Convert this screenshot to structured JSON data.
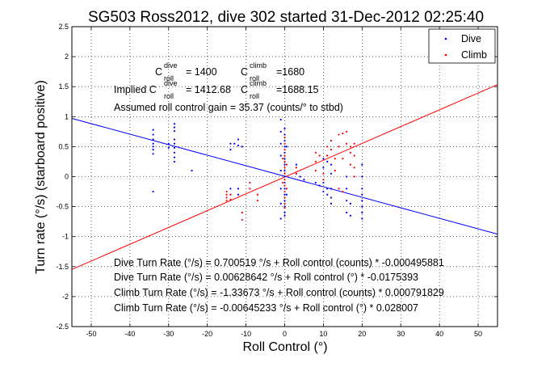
{
  "chart_data": {
    "type": "scatter",
    "title": "SG503 Ross2012, dive 302 started 31-Dec-2012 02:25:40",
    "xlabel": "Roll Control (°)",
    "ylabel": "Turn rate (°/s) (starboard positive)",
    "xlim": [
      -55,
      55
    ],
    "ylim": [
      -2.5,
      2.5
    ],
    "xticks": [
      -50,
      -40,
      -30,
      -20,
      -10,
      0,
      10,
      20,
      30,
      40,
      50
    ],
    "yticks": [
      -2.5,
      -2,
      -1.5,
      -1,
      -0.5,
      0,
      0.5,
      1,
      1.5,
      2,
      2.5
    ],
    "grid": true,
    "legend_position": "top-right",
    "series": [
      {
        "name": "Dive",
        "color": "#0000ff",
        "marker": "dot",
        "points": [
          [
            -34,
            0.78
          ],
          [
            -34,
            0.7
          ],
          [
            -34,
            0.62
          ],
          [
            -34,
            0.55
          ],
          [
            -34,
            0.5
          ],
          [
            -34,
            0.45
          ],
          [
            -34,
            0.38
          ],
          [
            -34,
            -0.25
          ],
          [
            -30,
            0.55
          ],
          [
            -30,
            0.48
          ],
          [
            -28.5,
            0.88
          ],
          [
            -28.5,
            0.82
          ],
          [
            -28.5,
            0.76
          ],
          [
            -28.5,
            0.62
          ],
          [
            -28.5,
            0.55
          ],
          [
            -28.5,
            0.48
          ],
          [
            -28.5,
            0.4
          ],
          [
            -28.5,
            0.32
          ],
          [
            -28.5,
            0.25
          ],
          [
            -24,
            0.1
          ],
          [
            -14,
            0.55
          ],
          [
            -14,
            0.45
          ],
          [
            -14,
            -0.2
          ],
          [
            -14,
            -0.3
          ],
          [
            -13,
            0.55
          ],
          [
            -12,
            0.62
          ],
          [
            -12,
            0.52
          ],
          [
            -12,
            -0.2
          ],
          [
            -12,
            -0.3
          ],
          [
            -11,
            0.5
          ],
          [
            -1,
            0.95
          ],
          [
            -1,
            0.75
          ],
          [
            -1,
            0.55
          ],
          [
            -1,
            0.35
          ],
          [
            -1,
            0.1
          ],
          [
            -1,
            -0.2
          ],
          [
            -1,
            -0.45
          ],
          [
            -1,
            -0.7
          ],
          [
            0,
            0.8
          ],
          [
            0,
            0.7
          ],
          [
            0,
            0.6
          ],
          [
            0,
            0.5
          ],
          [
            0,
            0.4
          ],
          [
            0,
            0.3
          ],
          [
            0,
            0.2
          ],
          [
            0,
            0.1
          ],
          [
            0,
            0.0
          ],
          [
            0,
            -0.1
          ],
          [
            0,
            -0.2
          ],
          [
            0,
            -0.3
          ],
          [
            0,
            -0.4
          ],
          [
            0,
            -0.5
          ],
          [
            0,
            -0.6
          ],
          [
            0,
            -0.65
          ],
          [
            0.5,
            0.5
          ],
          [
            0.5,
            -0.3
          ],
          [
            3,
            0.2
          ],
          [
            3,
            0.05
          ],
          [
            4,
            0.0
          ],
          [
            5,
            -0.05
          ],
          [
            8,
            -0.1
          ],
          [
            9,
            -0.15
          ],
          [
            10,
            0.3
          ],
          [
            10,
            0.15
          ],
          [
            10,
            -0.1
          ],
          [
            10,
            -0.25
          ],
          [
            11,
            0.35
          ],
          [
            11,
            0.25
          ],
          [
            11,
            -0.2
          ],
          [
            11,
            -0.3
          ],
          [
            12,
            0.2
          ],
          [
            12,
            0.05
          ],
          [
            12,
            -0.2
          ],
          [
            12,
            -0.35
          ],
          [
            12,
            -0.45
          ],
          [
            16,
            0.0
          ],
          [
            16,
            -0.2
          ],
          [
            16,
            -0.4
          ],
          [
            16,
            -0.6
          ],
          [
            17,
            -0.45
          ],
          [
            17,
            -0.65
          ],
          [
            20,
            0.2
          ],
          [
            20,
            0.0
          ],
          [
            20,
            -0.2
          ],
          [
            20,
            -0.3
          ],
          [
            20,
            -0.4
          ],
          [
            20,
            -0.5
          ],
          [
            20,
            -0.6
          ],
          [
            20,
            -0.7
          ]
        ]
      },
      {
        "name": "Climb",
        "color": "#ff0000",
        "marker": "dot",
        "points": [
          [
            -15,
            -0.25
          ],
          [
            -15,
            -0.3
          ],
          [
            -15,
            -0.35
          ],
          [
            -15,
            -0.4
          ],
          [
            -14,
            -0.3
          ],
          [
            -14,
            -0.38
          ],
          [
            -11,
            -0.6
          ],
          [
            -11,
            -0.72
          ],
          [
            -9,
            -0.1
          ],
          [
            -9,
            -0.2
          ],
          [
            -7,
            -0.3
          ],
          [
            -7,
            -0.4
          ],
          [
            0,
            0.65
          ],
          [
            0,
            0.55
          ],
          [
            0,
            0.45
          ],
          [
            0,
            0.35
          ],
          [
            0,
            0.25
          ],
          [
            0,
            0.15
          ],
          [
            0,
            0.05
          ],
          [
            0,
            -0.05
          ],
          [
            0,
            -0.15
          ],
          [
            0,
            -0.25
          ],
          [
            0,
            -0.35
          ],
          [
            0,
            -0.45
          ],
          [
            0,
            -0.52
          ],
          [
            -0.5,
            0.3
          ],
          [
            -0.5,
            -0.1
          ],
          [
            0.5,
            0.2
          ],
          [
            0.5,
            -0.2
          ],
          [
            3,
            0.15
          ],
          [
            3,
            0.05
          ],
          [
            8,
            0.4
          ],
          [
            8,
            0.25
          ],
          [
            8,
            0.1
          ],
          [
            9,
            0.35
          ],
          [
            10,
            0.05
          ],
          [
            10,
            -0.05
          ],
          [
            11,
            0.5
          ],
          [
            11,
            0.35
          ],
          [
            12,
            0.6
          ],
          [
            12,
            0.45
          ],
          [
            13,
            0.3
          ],
          [
            13,
            0.1
          ],
          [
            14,
            0.7
          ],
          [
            14,
            0.5
          ],
          [
            14,
            -0.2
          ],
          [
            15,
            0.72
          ],
          [
            15,
            0.3
          ],
          [
            15,
            -0.25
          ],
          [
            16,
            0.75
          ],
          [
            16,
            0.55
          ],
          [
            17,
            0.5
          ],
          [
            17,
            0.4
          ],
          [
            17,
            0.2
          ],
          [
            18,
            0.55
          ],
          [
            18,
            0.35
          ],
          [
            18,
            0.15
          ],
          [
            18,
            0.0
          ]
        ]
      }
    ],
    "fit_lines": [
      {
        "name": "Dive fit",
        "color": "#0000ff",
        "slope": -0.0175393,
        "intercept": 0.0062864
      },
      {
        "name": "Climb fit",
        "color": "#ff0000",
        "slope": 0.028007,
        "intercept": -0.0064523
      }
    ]
  },
  "annotations": {
    "c_dive": "= 1400",
    "c_climb": "=1680",
    "implied_label": "Implied C",
    "implied_dive": "= 1412.68",
    "implied_climb": "=1688.15",
    "c_symbol": "C",
    "sup_dive": "dive",
    "sup_climb": "climb",
    "sub_roll": "roll",
    "gain": "Assumed roll control gain = 35.37 (counts/° to stbd)",
    "eq1": "Dive Turn Rate (°/s) = 0.700519 °/s + Roll control (counts) * -0.000495881",
    "eq2": "Dive Turn Rate (°/s) = 0.00628642 °/s + Roll control (°) * -0.0175393",
    "eq3": "Climb Turn Rate (°/s) = -1.33673 °/s + Roll control (counts) * 0.000791829",
    "eq4": "Climb Turn Rate (°/s) = -0.00645233 °/s + Roll control (°) * 0.028007"
  }
}
